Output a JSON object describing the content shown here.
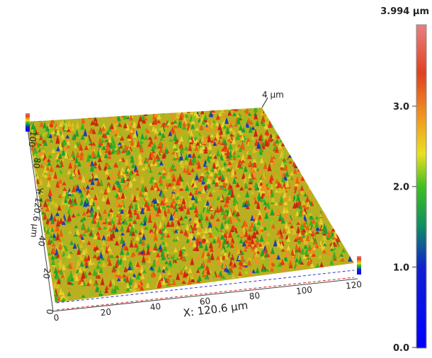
{
  "colorbar": {
    "max_label": "3.994 µm",
    "ticks": [
      "3.0",
      "2.0",
      "1.0",
      "0.0"
    ]
  },
  "peak_label": "4 µm",
  "x_axis": {
    "label": "X: 120.6 µm",
    "ticks": [
      "0",
      "20",
      "40",
      "60",
      "80",
      "100",
      "120"
    ]
  },
  "y_axis": {
    "label": "Y: 120.6 µm",
    "ticks": [
      "0",
      "20",
      "40",
      "80",
      "100"
    ]
  }
}
